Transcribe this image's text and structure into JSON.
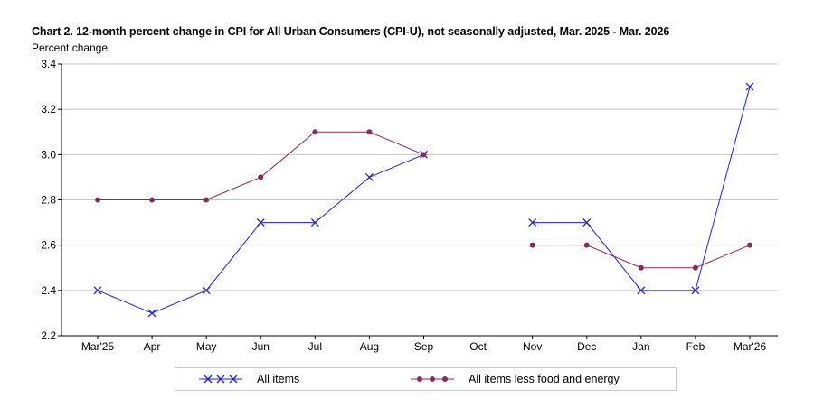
{
  "chart_data": {
    "type": "line",
    "title": "Chart 2. 12-month percent change in CPI for All Urban Consumers (CPI-U), not seasonally adjusted, Mar. 2025 - Mar. 2026",
    "ylabel": "Percent change",
    "xlabel": "",
    "categories": [
      "Mar'25",
      "Apr",
      "May",
      "Jun",
      "Jul",
      "Aug",
      "Sep",
      "Oct",
      "Nov",
      "Dec",
      "Jan",
      "Feb",
      "Mar'26"
    ],
    "ylim": [
      2.2,
      3.4
    ],
    "yticks": [
      "2.2",
      "2.4",
      "2.6",
      "2.8",
      "3.0",
      "3.2",
      "3.4"
    ],
    "grid": true,
    "legend_position": "bottom",
    "series": [
      {
        "name": "All items",
        "color": "#1f1fe6",
        "marker": "x",
        "values": [
          2.4,
          2.3,
          2.4,
          2.7,
          2.7,
          2.9,
          3.0,
          null,
          2.7,
          2.7,
          2.4,
          2.4,
          3.3
        ]
      },
      {
        "name": "All items less food and energy",
        "color": "#8b2a5a",
        "marker": "dot",
        "values": [
          2.8,
          2.8,
          2.8,
          2.9,
          3.1,
          3.1,
          3.0,
          null,
          2.6,
          2.6,
          2.5,
          2.5,
          2.6
        ]
      }
    ]
  }
}
